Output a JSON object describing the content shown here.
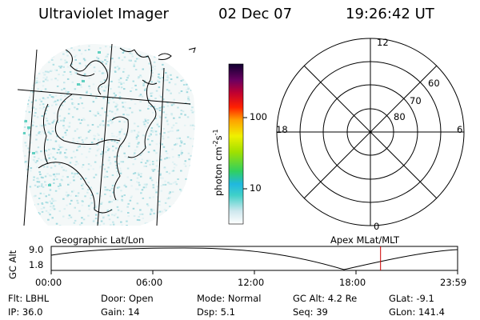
{
  "header": {
    "instrument": "Ultraviolet Imager",
    "date": "02 Dec 07",
    "time": "19:26:42 UT"
  },
  "colorbar": {
    "label": "photon cm",
    "label_sup1": "-2",
    "label_s": "s",
    "label_sup2": "-1",
    "ticks": [
      "100",
      "10"
    ],
    "scale": "log"
  },
  "polar_plot": {
    "mlt_labels": [
      "12",
      "18",
      "6",
      "0"
    ],
    "lat_labels": [
      "60",
      "70",
      "80"
    ]
  },
  "panel_titles": {
    "left": "Geographic Lat/Lon",
    "right": "Apex MLat/MLT"
  },
  "altitude_plot": {
    "ylabel": "GC Alt",
    "ytick_top": "9.0",
    "ytick_bottom": "1.8",
    "xticks": [
      "00:00",
      "06:00",
      "12:00",
      "18:00",
      "23:59"
    ],
    "current_time_marker_hours": 19.45,
    "cursor_color": "#cc0000"
  },
  "info": {
    "flt": "Flt: LBHL",
    "ip": "IP: 36.0",
    "door": "Door: Open",
    "gain": "Gain: 14",
    "mode": "Mode: Normal",
    "dsp": "Dsp:    5.1",
    "gcalt": "GC Alt: 4.2 Re",
    "seq": "Seq: 39",
    "glat": "GLat:  -9.1",
    "glon": "GLon: 141.4"
  }
}
